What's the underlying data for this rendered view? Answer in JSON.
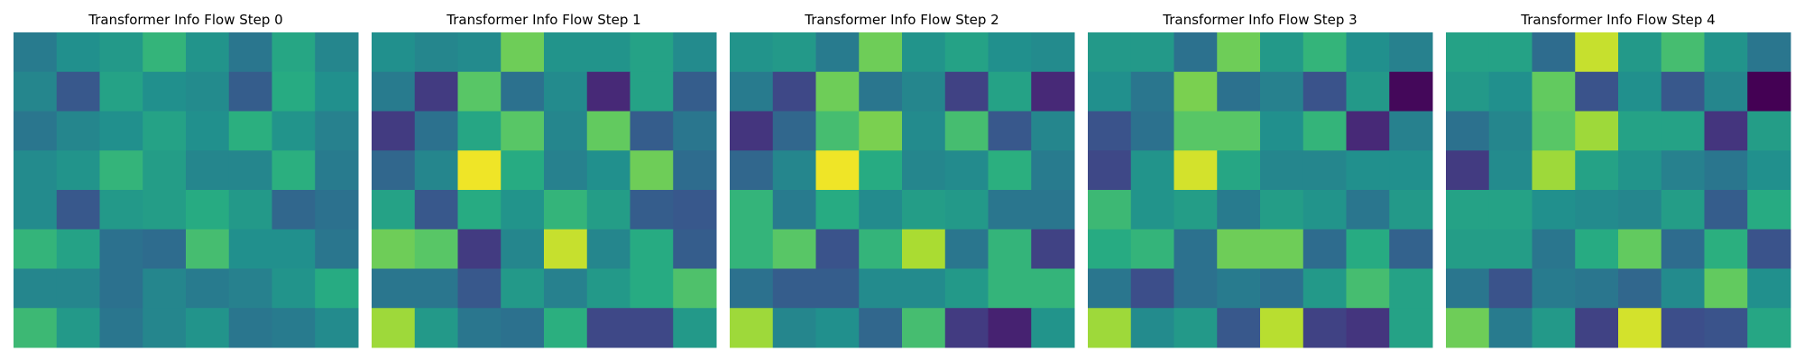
{
  "chart_data": [
    {
      "type": "heatmap",
      "title": "Transformer Info Flow Step 0",
      "colormap": "viridis",
      "grid": false,
      "values": [
        [
          0.42,
          0.5,
          0.54,
          0.66,
          0.52,
          0.4,
          0.6,
          0.46
        ],
        [
          0.46,
          0.28,
          0.58,
          0.5,
          0.48,
          0.3,
          0.62,
          0.5
        ],
        [
          0.4,
          0.46,
          0.5,
          0.58,
          0.5,
          0.64,
          0.52,
          0.44
        ],
        [
          0.48,
          0.52,
          0.66,
          0.56,
          0.46,
          0.46,
          0.64,
          0.42
        ],
        [
          0.48,
          0.28,
          0.54,
          0.56,
          0.62,
          0.54,
          0.34,
          0.38
        ],
        [
          0.66,
          0.58,
          0.38,
          0.36,
          0.7,
          0.5,
          0.5,
          0.4
        ],
        [
          0.46,
          0.46,
          0.38,
          0.46,
          0.42,
          0.44,
          0.52,
          0.62
        ],
        [
          0.68,
          0.54,
          0.4,
          0.46,
          0.52,
          0.4,
          0.42,
          0.48
        ]
      ]
    },
    {
      "type": "heatmap",
      "title": "Transformer Info Flow Step 1",
      "colormap": "viridis",
      "grid": false,
      "values": [
        [
          0.5,
          0.46,
          0.48,
          0.78,
          0.52,
          0.52,
          0.58,
          0.48
        ],
        [
          0.42,
          0.18,
          0.74,
          0.38,
          0.48,
          0.12,
          0.58,
          0.3
        ],
        [
          0.18,
          0.38,
          0.6,
          0.74,
          0.46,
          0.76,
          0.3,
          0.4
        ],
        [
          0.34,
          0.46,
          0.98,
          0.62,
          0.44,
          0.5,
          0.78,
          0.36
        ],
        [
          0.58,
          0.28,
          0.62,
          0.52,
          0.66,
          0.56,
          0.3,
          0.28
        ],
        [
          0.78,
          0.74,
          0.18,
          0.46,
          0.92,
          0.46,
          0.62,
          0.3
        ],
        [
          0.4,
          0.4,
          0.28,
          0.54,
          0.44,
          0.54,
          0.62,
          0.72
        ],
        [
          0.86,
          0.54,
          0.4,
          0.38,
          0.64,
          0.22,
          0.22,
          0.54
        ]
      ]
    },
    {
      "type": "heatmap",
      "title": "Transformer Info Flow Step 2",
      "colormap": "viridis",
      "grid": false,
      "values": [
        [
          0.52,
          0.54,
          0.42,
          0.78,
          0.52,
          0.58,
          0.5,
          0.48
        ],
        [
          0.42,
          0.22,
          0.78,
          0.4,
          0.46,
          0.2,
          0.58,
          0.12
        ],
        [
          0.16,
          0.34,
          0.7,
          0.8,
          0.48,
          0.7,
          0.28,
          0.46
        ],
        [
          0.34,
          0.46,
          0.98,
          0.62,
          0.46,
          0.48,
          0.64,
          0.42
        ],
        [
          0.66,
          0.42,
          0.62,
          0.48,
          0.56,
          0.54,
          0.4,
          0.4
        ],
        [
          0.66,
          0.74,
          0.26,
          0.66,
          0.88,
          0.4,
          0.66,
          0.2
        ],
        [
          0.38,
          0.3,
          0.3,
          0.48,
          0.48,
          0.54,
          0.66,
          0.66
        ],
        [
          0.86,
          0.46,
          0.5,
          0.34,
          0.7,
          0.18,
          0.1,
          0.52
        ]
      ]
    },
    {
      "type": "heatmap",
      "title": "Transformer Info Flow Step 3",
      "colormap": "viridis",
      "grid": false,
      "values": [
        [
          0.54,
          0.54,
          0.38,
          0.78,
          0.54,
          0.66,
          0.5,
          0.44
        ],
        [
          0.5,
          0.4,
          0.8,
          0.38,
          0.44,
          0.26,
          0.54,
          0.02
        ],
        [
          0.26,
          0.38,
          0.74,
          0.74,
          0.5,
          0.66,
          0.12,
          0.44
        ],
        [
          0.22,
          0.52,
          0.94,
          0.6,
          0.46,
          0.46,
          0.5,
          0.5
        ],
        [
          0.68,
          0.52,
          0.56,
          0.42,
          0.56,
          0.52,
          0.4,
          0.54
        ],
        [
          0.62,
          0.66,
          0.38,
          0.78,
          0.78,
          0.36,
          0.62,
          0.32
        ],
        [
          0.4,
          0.24,
          0.38,
          0.42,
          0.38,
          0.54,
          0.7,
          0.58
        ],
        [
          0.86,
          0.48,
          0.54,
          0.28,
          0.9,
          0.2,
          0.16,
          0.58
        ]
      ]
    },
    {
      "type": "heatmap",
      "title": "Transformer Info Flow Step 4",
      "colormap": "viridis",
      "grid": false,
      "values": [
        [
          0.58,
          0.58,
          0.36,
          0.92,
          0.54,
          0.7,
          0.52,
          0.4
        ],
        [
          0.54,
          0.5,
          0.76,
          0.26,
          0.5,
          0.28,
          0.46,
          0.0
        ],
        [
          0.38,
          0.46,
          0.74,
          0.86,
          0.58,
          0.58,
          0.16,
          0.56
        ],
        [
          0.18,
          0.48,
          0.86,
          0.58,
          0.52,
          0.44,
          0.4,
          0.5
        ],
        [
          0.58,
          0.58,
          0.5,
          0.48,
          0.46,
          0.56,
          0.3,
          0.62
        ],
        [
          0.56,
          0.56,
          0.4,
          0.62,
          0.76,
          0.36,
          0.64,
          0.26
        ],
        [
          0.4,
          0.26,
          0.42,
          0.4,
          0.34,
          0.48,
          0.76,
          0.5
        ],
        [
          0.78,
          0.42,
          0.54,
          0.2,
          0.94,
          0.24,
          0.26,
          0.6
        ]
      ]
    }
  ]
}
